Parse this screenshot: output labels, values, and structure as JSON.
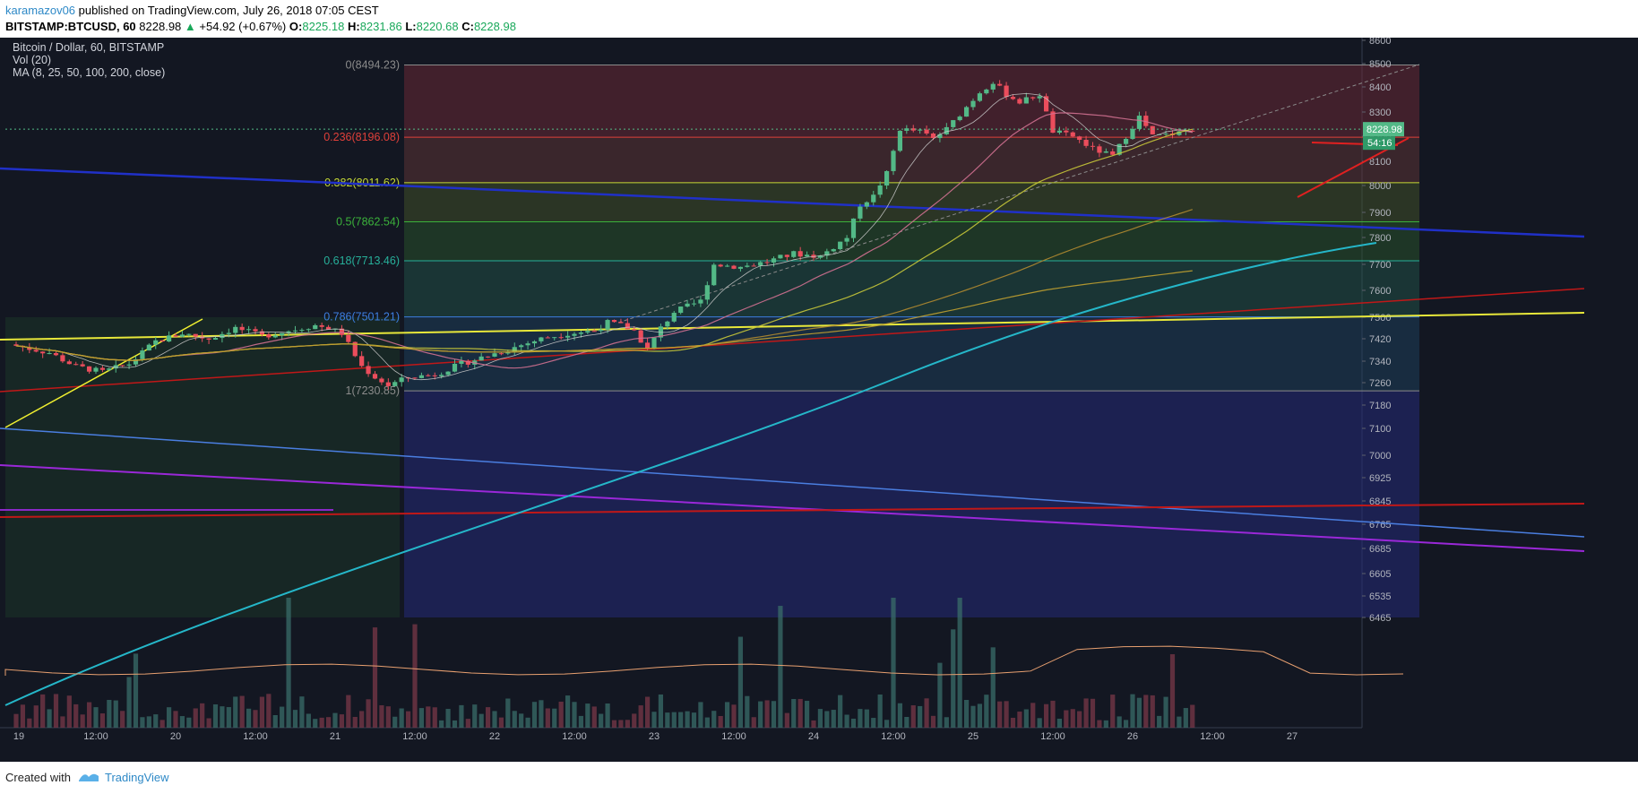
{
  "header": {
    "author": "karamazov06",
    "published_text": "published on TradingView.com, July 26, 2018 07:05 CEST",
    "symbol": "BITSTAMP:BTCUSD, 60",
    "last": "8228.98",
    "change": "+54.92 (+0.67%)",
    "o_label": "O:",
    "o": "8225.18",
    "h_label": "H:",
    "h": "8231.86",
    "l_label": "L:",
    "l": "8220.68",
    "c_label": "C:",
    "c": "8228.98"
  },
  "legend": {
    "title": "Bitcoin / Dollar, 60, BITSTAMP",
    "vol": "Vol (20)",
    "ma": "MA (8, 25, 50, 100, 200, close)"
  },
  "footer": {
    "created": "Created with",
    "brand": "TradingView"
  },
  "colors": {
    "background": "#131722",
    "up": "#53b987",
    "down": "#eb4d5c",
    "fib_0": "#8b8b8b",
    "fib_236": "#e0403a",
    "fib_382": "#c6d935",
    "fib_5": "#3bb23b",
    "fib_618": "#27b09a",
    "fib_786": "#3c7ee0"
  },
  "chart_data": {
    "type": "candlestick",
    "title": "Bitcoin / Dollar, 60, BITSTAMP",
    "ylim": [
      6380,
      8650
    ],
    "y_ticks": [
      8600,
      8500,
      8400,
      8300,
      8200,
      8100,
      8000,
      7900,
      7800,
      7700,
      7600,
      7500,
      7420,
      7340,
      7260,
      7180,
      7100,
      7000,
      6925,
      6845,
      6765,
      6685,
      6605,
      6535,
      6465
    ],
    "x_ticks": [
      "19",
      "12:00",
      "20",
      "12:00",
      "21",
      "12:00",
      "22",
      "12:00",
      "23",
      "12:00",
      "24",
      "12:00",
      "25",
      "12:00",
      "26",
      "12:00",
      "27"
    ],
    "last_price": "8228.98",
    "countdown": "54:16",
    "fib_levels": [
      {
        "label": "0(8494.23)",
        "value": 8494.23
      },
      {
        "label": "0.236(8196.08)",
        "value": 8196.08
      },
      {
        "label": "0.382(8011.62)",
        "value": 8011.62
      },
      {
        "label": "0.5(7862.54)",
        "value": 7862.54
      },
      {
        "label": "0.618(7713.46)",
        "value": 7713.46
      },
      {
        "label": "0.786(7501.21)",
        "value": 7501.21
      },
      {
        "label": "1(7230.85)",
        "value": 7230.85
      }
    ],
    "price_path": [
      [
        0,
        7400
      ],
      [
        6,
        7370
      ],
      [
        10,
        7320
      ],
      [
        14,
        7300
      ],
      [
        18,
        7330
      ],
      [
        22,
        7410
      ],
      [
        26,
        7440
      ],
      [
        30,
        7420
      ],
      [
        34,
        7460
      ],
      [
        38,
        7430
      ],
      [
        42,
        7450
      ],
      [
        46,
        7470
      ],
      [
        48,
        7460
      ],
      [
        50,
        7440
      ],
      [
        53,
        7320
      ],
      [
        55,
        7280
      ],
      [
        57,
        7250
      ],
      [
        60,
        7280
      ],
      [
        64,
        7290
      ],
      [
        68,
        7330
      ],
      [
        72,
        7360
      ],
      [
        76,
        7390
      ],
      [
        80,
        7420
      ],
      [
        84,
        7440
      ],
      [
        88,
        7450
      ],
      [
        90,
        7480
      ],
      [
        92,
        7470
      ],
      [
        94,
        7450
      ],
      [
        96,
        7380
      ],
      [
        98,
        7460
      ],
      [
        100,
        7520
      ],
      [
        104,
        7560
      ],
      [
        106,
        7700
      ],
      [
        110,
        7690
      ],
      [
        114,
        7710
      ],
      [
        118,
        7740
      ],
      [
        122,
        7730
      ],
      [
        126,
        7800
      ],
      [
        128,
        7930
      ],
      [
        130,
        7960
      ],
      [
        132,
        8050
      ],
      [
        134,
        8230
      ],
      [
        137,
        8220
      ],
      [
        139,
        8190
      ],
      [
        141,
        8230
      ],
      [
        143,
        8290
      ],
      [
        146,
        8380
      ],
      [
        148,
        8420
      ],
      [
        150,
        8370
      ],
      [
        152,
        8340
      ],
      [
        155,
        8370
      ],
      [
        157,
        8220
      ],
      [
        160,
        8200
      ],
      [
        163,
        8150
      ],
      [
        166,
        8120
      ],
      [
        168,
        8200
      ],
      [
        170,
        8280
      ],
      [
        172,
        8200
      ],
      [
        174,
        8205
      ],
      [
        176,
        8215
      ],
      [
        178,
        8229
      ]
    ]
  }
}
